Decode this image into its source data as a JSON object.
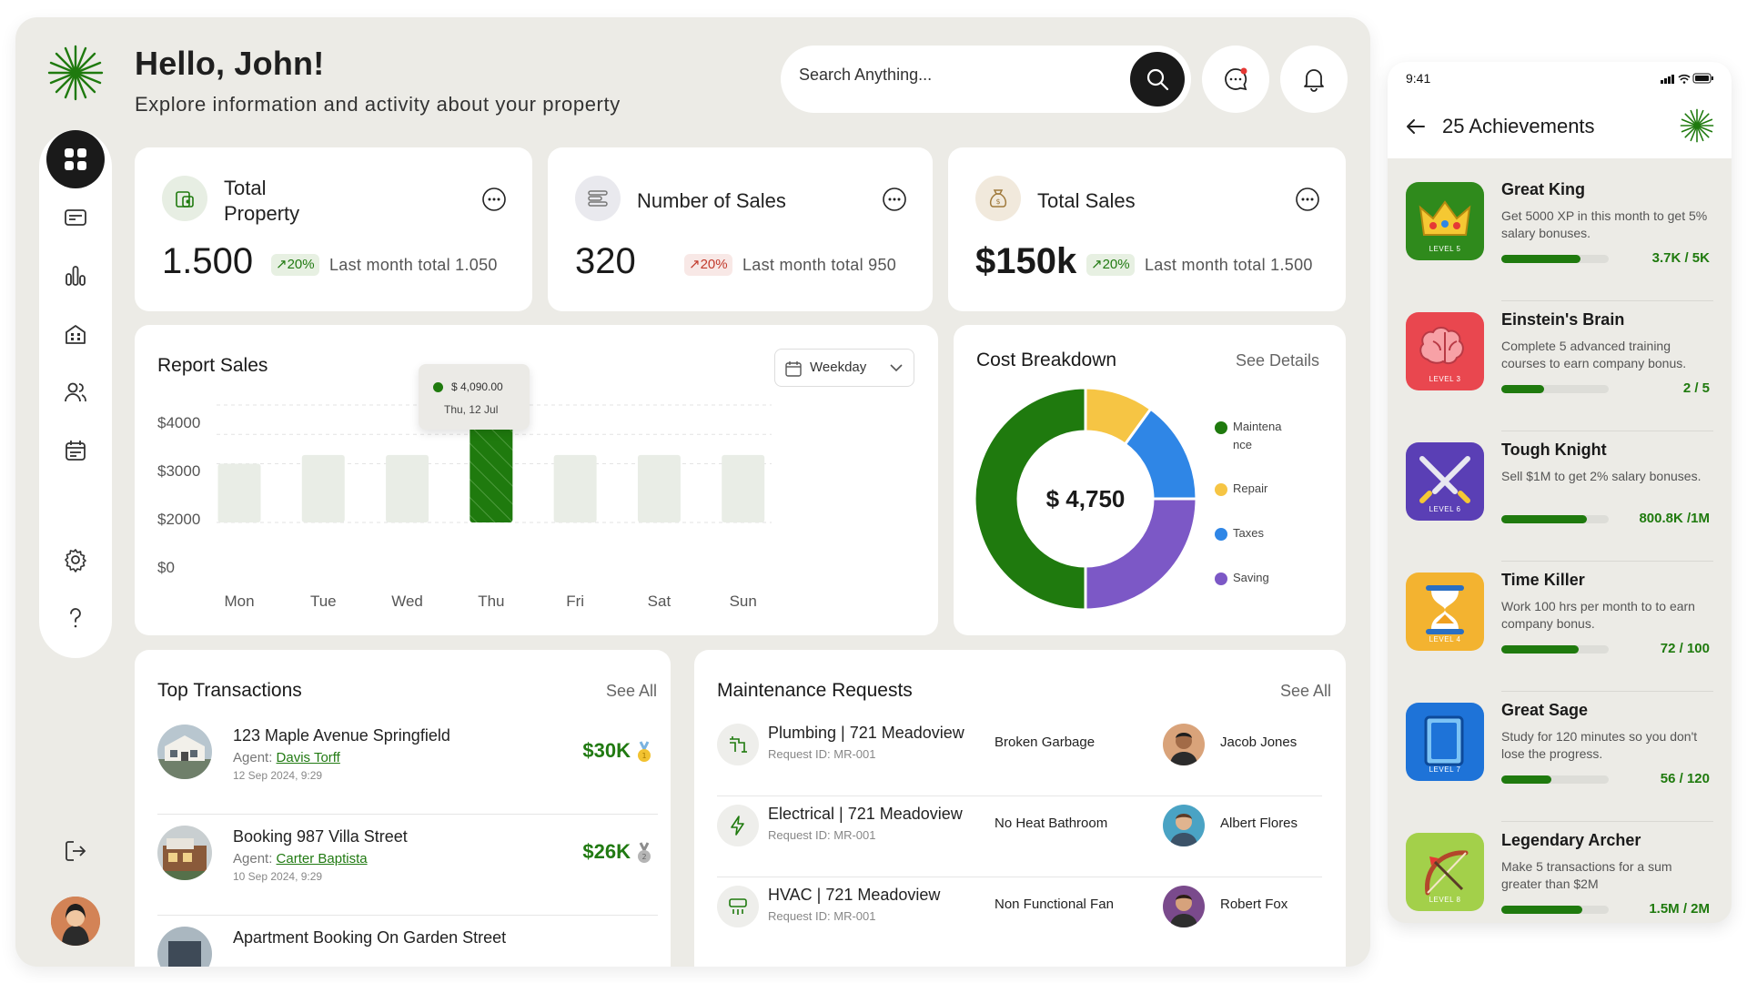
{
  "header": {
    "title": "Hello, John!",
    "subtitle": "Explore information and activity about your property",
    "search_placeholder": "Search Anything..."
  },
  "stats": [
    {
      "title": "Total Property",
      "value": "1.500",
      "change": "20%",
      "trend": "up",
      "note": "Last month total 1.050"
    },
    {
      "title": "Number of Sales",
      "value": "320",
      "change": "20%",
      "trend": "down",
      "note": "Last month total 950"
    },
    {
      "title": "Total Sales",
      "value": "$150k",
      "change": "20%",
      "trend": "up",
      "note": "Last month total 1.500"
    }
  ],
  "report": {
    "title": "Report Sales",
    "period_label": "Weekday",
    "tooltip_value": "$ 4,090.00",
    "tooltip_date": "Thu, 12 Jul"
  },
  "cost": {
    "title": "Cost Breakdown",
    "see_label": "See Details",
    "center_label": "$ 4,750",
    "legend": [
      "Maintena\nnce",
      "Repair",
      "Taxes",
      "Saving"
    ]
  },
  "chart_data": [
    {
      "type": "bar",
      "title": "Report Sales",
      "categories": [
        "Mon",
        "Tue",
        "Wed",
        "Thu",
        "Fri",
        "Sat",
        "Sun"
      ],
      "values": [
        2000,
        2300,
        2300,
        4090,
        2300,
        2300,
        2300
      ],
      "highlighted": "Thu",
      "ylim": [
        0,
        4000
      ],
      "ytick_labels": [
        "$4000",
        "$3000",
        "$2000",
        "$0"
      ],
      "grid": true,
      "colors": {
        "bar": "#e9ede6",
        "highlight": "#1f7a0e"
      }
    },
    {
      "type": "pie",
      "title": "Cost Breakdown",
      "categories": [
        "Maintenance",
        "Repair",
        "Taxes",
        "Saving"
      ],
      "values": [
        50,
        10,
        15,
        25
      ],
      "colors": [
        "#1f7a0e",
        "#f6c544",
        "#2f86e6",
        "#7c58c6"
      ]
    }
  ],
  "transactions": {
    "title": "Top Transactions",
    "see_label": "See All",
    "agent_prefix": "Agent:",
    "items": [
      {
        "name": "123 Maple Avenue Springfield",
        "agent": "Davis Torff",
        "date": "12 Sep 2024, 9:29",
        "amount": "$30K",
        "medal": "gold"
      },
      {
        "name": "Booking 987 Villa Street",
        "agent": "Carter Baptista",
        "date": "10 Sep 2024, 9:29",
        "amount": "$26K",
        "medal": "silver"
      },
      {
        "name": "Apartment Booking On Garden Street",
        "agent": "",
        "date": "",
        "amount": "",
        "medal": "bronze"
      }
    ]
  },
  "maintenance": {
    "title": "Maintenance Requests",
    "see_label": "See All",
    "items": [
      {
        "title": "Plumbing | 721 Meadoview",
        "request": "Request ID: MR-001",
        "issue": "Broken Garbage",
        "person": "Jacob Jones",
        "icon": "plumbing-icon"
      },
      {
        "title": "Electrical | 721 Meadoview",
        "request": "Request ID: MR-001",
        "issue": "No Heat Bathroom",
        "person": "Albert Flores",
        "icon": "electrical-icon"
      },
      {
        "title": "HVAC | 721 Meadoview",
        "request": "Request ID: MR-001",
        "issue": "Non Functional Fan",
        "person": "Robert Fox",
        "icon": "hvac-icon"
      }
    ]
  },
  "phone": {
    "time": "9:41",
    "title": "25 Achievements",
    "achievements": [
      {
        "title": "Great King",
        "desc": "Get 5000 XP in this month to get 5% salary bonuses.",
        "progress": "3.7K / 5K",
        "fraction": 0.74,
        "level": "LEVEL 5",
        "icon": "crown-icon",
        "color": "#2f8a1c"
      },
      {
        "title": "Einstein's Brain",
        "desc": "Complete 5 advanced training courses to earn company bonus.",
        "progress": "2 / 5",
        "fraction": 0.4,
        "level": "LEVEL 3",
        "icon": "brain-icon",
        "color": "#e9474f"
      },
      {
        "title": "Tough Knight",
        "desc": "Sell $1M to get 2% salary bonuses.",
        "progress": "800.8K /1M",
        "fraction": 0.8,
        "level": "LEVEL 6",
        "icon": "swords-icon",
        "color": "#5a3fb5"
      },
      {
        "title": "Time Killer",
        "desc": "Work 100 hrs per month to to earn company bonus.",
        "progress": "72 / 100",
        "fraction": 0.72,
        "level": "LEVEL 4",
        "icon": "hourglass-icon",
        "color": "#f3b330"
      },
      {
        "title": "Great Sage",
        "desc": "Study for 120 minutes so you don't lose the progress.",
        "progress": "56 / 120",
        "fraction": 0.47,
        "level": "LEVEL 7",
        "icon": "book-icon",
        "color": "#1e73d8"
      },
      {
        "title": "Legendary Archer",
        "desc": "Make 5 transactions for a sum greater than $2M",
        "progress": "1.5M / 2M",
        "fraction": 0.75,
        "level": "LEVEL 8",
        "icon": "bow-icon",
        "color": "#a3d04a"
      }
    ]
  }
}
